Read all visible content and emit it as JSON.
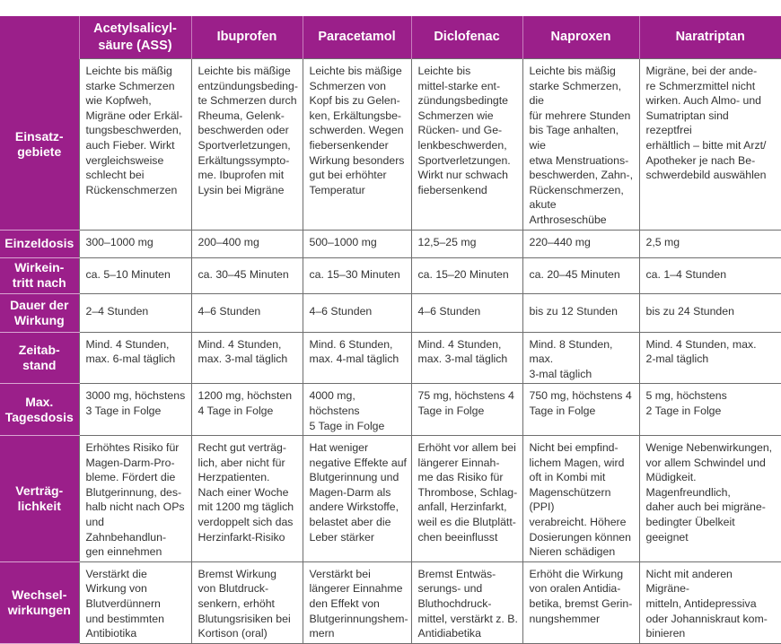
{
  "columns": [
    "Acetylsalicyl-\nsäure (ASS)",
    "Ibuprofen",
    "Paracetamol",
    "Diclofenac",
    "Naproxen",
    "Naratriptan"
  ],
  "rows": [
    {
      "label": "Einsatz-\ngebiete",
      "cells": [
        "Leichte bis mäßig\nstarke Schmerzen\nwie Kopfweh,\nMigräne oder Erkäl-\ntungsbeschwerden,\nauch Fieber. Wirkt\nvergleichsweise\nschlecht bei\nRückenschmerzen",
        "Leichte bis mäßige\nentzündungsbeding-\nte Schmerzen durch\nRheuma, Gelenk-\nbeschwerden oder\nSportverletzungen,\nErkältungssympto-\nme. Ibuprofen mit\nLysin bei Migräne",
        "Leichte bis mäßige\nSchmerzen von\nKopf bis zu Gelen-\nken, Erkältungsbe-\nschwerden. Wegen\nfiebersenkender\nWirkung besonders\ngut bei erhöhter\nTemperatur",
        "Leichte bis\nmittel-starke ent-\nzündungsbedingte\nSchmerzen wie\nRücken- und Ge-\nlenkbeschwerden,\nSportverletzungen.\nWirkt nur schwach\nfiebersenkend",
        "Leichte bis mäßig\nstarke Schmerzen, die\nfür mehrere Stunden\nbis Tage anhalten, wie\netwa Menstruations-\nbeschwerden, Zahn-,\nRückenschmerzen,\nakute Arthroseschübe",
        "Migräne, bei der ande-\nre Schmerzmittel nicht\nwirken. Auch Almo- und\nSumatriptan sind rezeptfrei\nerhältlich – bitte mit Arzt/\nApotheker je nach Be-\nschwerdebild auswählen"
      ]
    },
    {
      "label": "Einzeldosis",
      "cells": [
        "300–1000 mg",
        "200–400 mg",
        "500–1000 mg",
        "12,5–25 mg",
        "220–440 mg",
        "2,5 mg"
      ]
    },
    {
      "label": "Wirkein-\ntritt nach",
      "cells": [
        "ca. 5–10 Minuten",
        "ca. 30–45 Minuten",
        "ca. 15–30 Minuten",
        "ca. 15–20 Minuten",
        "ca. 20–45 Minuten",
        "ca. 1–4 Stunden"
      ]
    },
    {
      "label": "Dauer der\nWirkung",
      "cells": [
        "2–4 Stunden",
        "4–6 Stunden",
        "4–6 Stunden",
        "4–6 Stunden",
        "bis zu 12 Stunden",
        "bis zu 24 Stunden"
      ]
    },
    {
      "label": "Zeitab-\nstand",
      "cells": [
        "Mind. 4 Stunden,\nmax. 6-mal täglich",
        "Mind. 4 Stunden,\nmax. 3-mal täglich",
        "Mind. 6 Stunden,\nmax. 4-mal täglich",
        "Mind. 4 Stunden,\nmax. 3-mal täglich",
        "Mind. 8 Stunden, max.\n3-mal täglich",
        "Mind. 4 Stunden, max.\n2-mal täglich"
      ]
    },
    {
      "label": "Max.\nTagesdosis",
      "cells": [
        "3000 mg, höchstens\n3 Tage in Folge",
        "1200 mg, höchsten\n4 Tage in Folge",
        "4000 mg, höchstens\n5 Tage in Folge",
        "75 mg, höchstens 4\nTage in Folge",
        "750 mg, höchstens 4\nTage in Folge",
        "5 mg, höchstens\n2 Tage in Folge"
      ]
    },
    {
      "label": "Verträg-\nlichkeit",
      "cells": [
        "Erhöhtes Risiko für\nMagen-Darm-Pro-\nbleme. Fördert die\nBlutgerinnung, des-\nhalb nicht nach OPs\nund Zahnbehandlun-\ngen einnehmen",
        "Recht gut verträg-\nlich, aber nicht für\nHerzpatienten.\nNach einer Woche\nmit 1200 mg täglich\nverdoppelt sich das\nHerzinfarkt-Risiko",
        "Hat weniger\nnegative Effekte auf\nBlutgerinnung und\nMagen-Darm als\nandere Wirkstoffe,\nbelastet aber die\nLeber stärker",
        "Erhöht vor allem bei\nlängerer Einnah-\nme das Risiko für\nThrombose, Schlag-\nanfall, Herzinfarkt,\nweil es die Blutplätt-\nchen beeinflusst",
        "Nicht bei empfind-\nlichem Magen, wird\noft in Kombi mit\nMagenschützern (PPI)\nverabreicht. Höhere\nDosierungen können\nNieren schädigen",
        "Wenige Nebenwirkungen,\nvor allem Schwindel und\nMüdigkeit. Magenfreundlich,\ndaher auch bei migräne-\nbedingter Übelkeit geeignet"
      ]
    },
    {
      "label": "Wechsel-\nwirkungen",
      "cells": [
        "Verstärkt die\nWirkung von\nBlutverdünnern\nund bestimmten\nAntibiotika",
        "Bremst Wirkung\nvon Blutdruck-\nsenkern, erhöht\nBlutungsrisiken bei\nKortison (oral)",
        "Verstärkt bei\nlängerer Einnahme\nden Effekt von\nBlutgerinnungshem-\nmern",
        "Bremst Entwäs-\nserungs- und\nBluthochdruck-\nmittel, verstärkt z. B.\nAntidiabetika",
        "Erhöht die Wirkung\nvon oralen Antidia-\nbetika, bremst Gerin-\nnungshemmer",
        "Nicht mit anderen Migräne-\nmitteln, Antidepressiva\noder Johanniskraut kom-\nbinieren"
      ]
    }
  ],
  "colors": {
    "accent": "#9b1f8a",
    "border": "#6e6e6e"
  }
}
